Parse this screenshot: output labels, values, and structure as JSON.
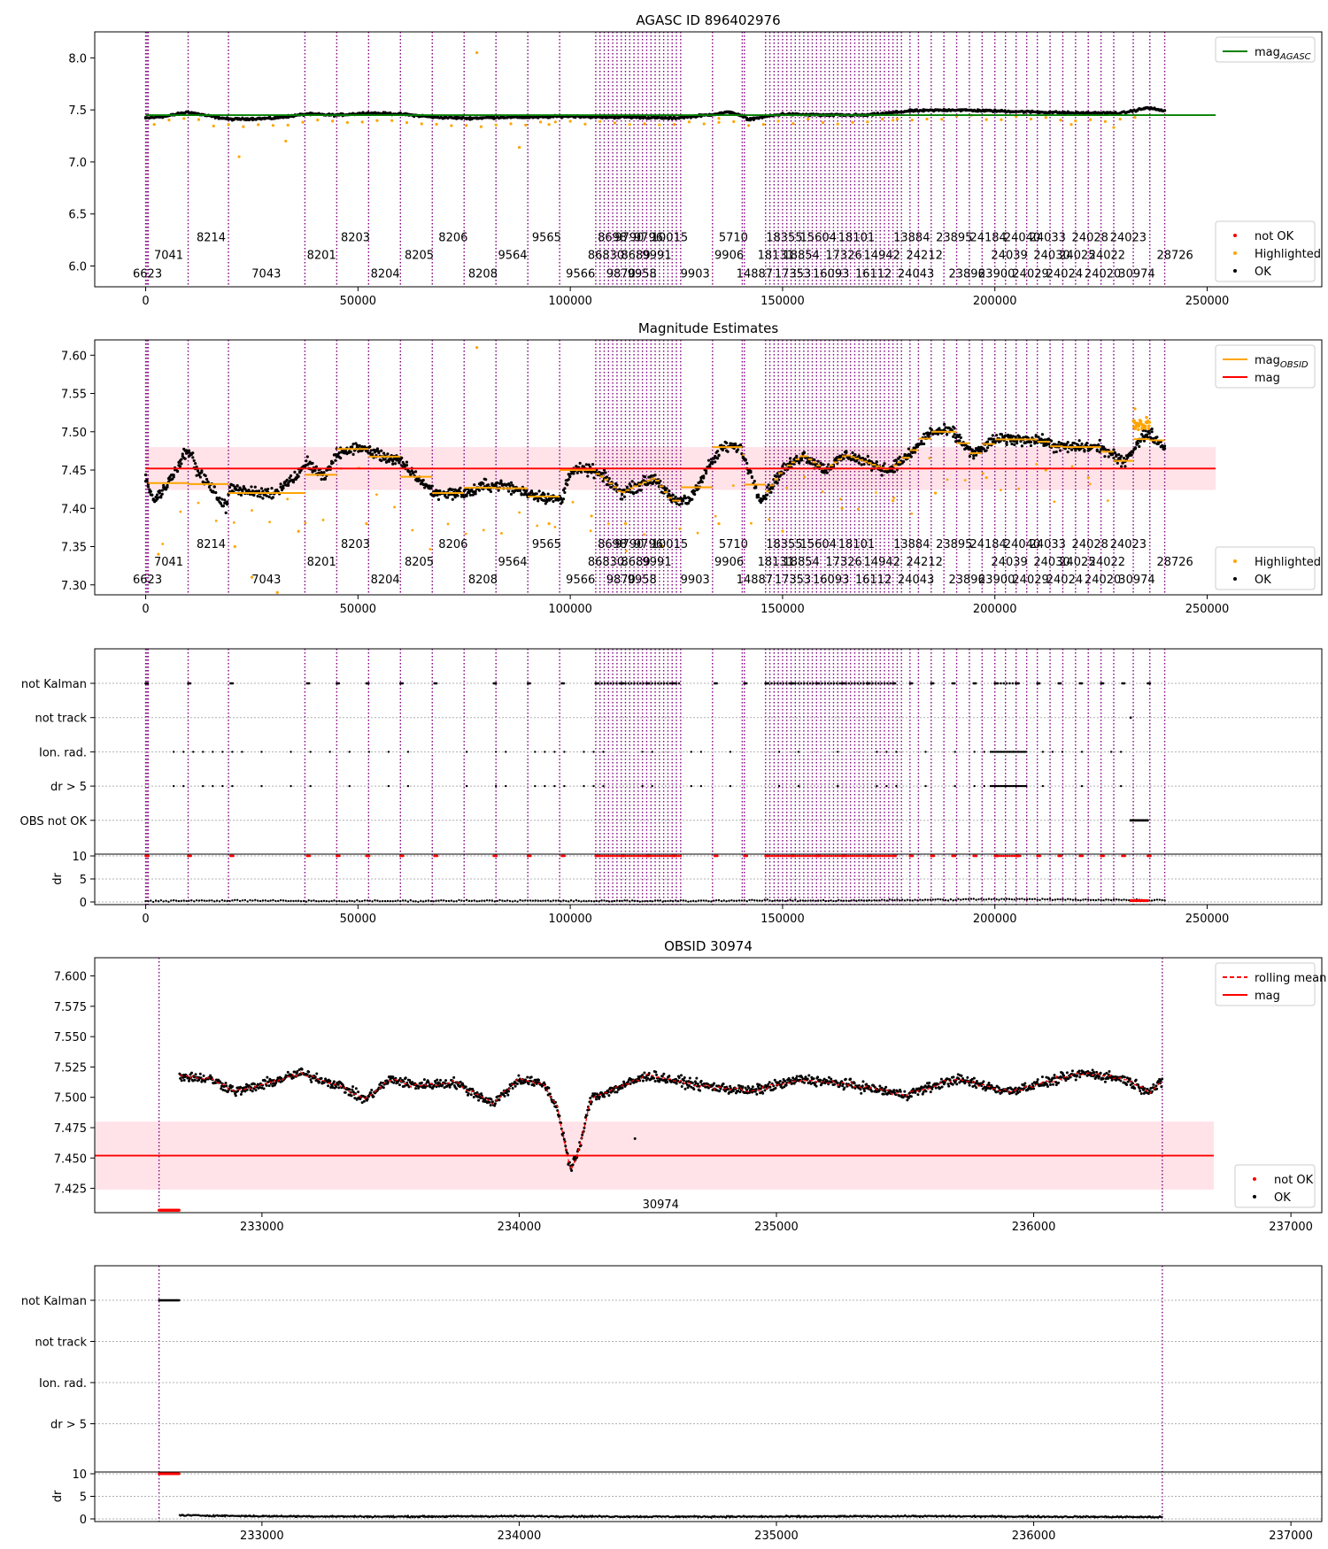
{
  "chart_data": [
    {
      "type": "scatter",
      "title": "AGASC ID 896402976",
      "xlabel": "",
      "ylabel": "",
      "xlim": [
        -12000,
        277000
      ],
      "ylim": [
        5.8,
        8.25
      ],
      "xticks": [
        0,
        50000,
        100000,
        150000,
        200000,
        250000
      ],
      "yticks": [
        6.0,
        6.5,
        7.0,
        7.5,
        8.0
      ],
      "ytick_labels": [
        "6.0",
        "6.5",
        "7.0",
        "7.5",
        "8.0"
      ],
      "xtick_labels": [
        "0",
        "50000",
        "100000",
        "150000",
        "200000",
        "250000"
      ],
      "legend_position": "top-right",
      "legend_lines": [
        {
          "name": "mag_AGASC",
          "color": "#008000"
        }
      ],
      "legend_points": [
        {
          "name": "not OK",
          "color": "#ff0000"
        },
        {
          "name": "Highlighted",
          "color": "#ffa500"
        },
        {
          "name": "OK",
          "color": "#000000"
        }
      ],
      "mag_agasc": 7.45,
      "series": [
        {
          "name": "OK",
          "color": "#000000",
          "x": [
            0,
            5000,
            10000,
            15000,
            20000,
            30000,
            38000,
            45000,
            52000,
            60000,
            68000,
            76000,
            84000,
            92000,
            100000,
            108000,
            116000,
            124000,
            132000,
            138000,
            142000,
            150000,
            160000,
            170000,
            180000,
            190000,
            200000,
            210000,
            220000,
            230000,
            236000,
            240000
          ],
          "y": [
            7.42,
            7.44,
            7.48,
            7.44,
            7.41,
            7.42,
            7.46,
            7.45,
            7.47,
            7.46,
            7.43,
            7.42,
            7.43,
            7.43,
            7.44,
            7.43,
            7.43,
            7.42,
            7.45,
            7.48,
            7.41,
            7.46,
            7.45,
            7.45,
            7.49,
            7.5,
            7.49,
            7.48,
            7.47,
            7.47,
            7.52,
            7.49
          ]
        },
        {
          "name": "Highlighted",
          "color": "#ffa500",
          "x": [
            22000,
            33000,
            78000,
            88000,
            95000,
            135000,
            176000,
            218000,
            228000
          ],
          "y": [
            7.05,
            7.2,
            8.05,
            7.14,
            7.36,
            7.38,
            7.4,
            7.36,
            7.33
          ]
        }
      ]
    },
    {
      "type": "scatter",
      "title": "Magnitude Estimates",
      "xlabel": "",
      "ylabel": "",
      "xlim": [
        -12000,
        277000
      ],
      "ylim": [
        7.287,
        7.62
      ],
      "xticks": [
        0,
        50000,
        100000,
        150000,
        200000,
        250000
      ],
      "yticks": [
        7.3,
        7.35,
        7.4,
        7.45,
        7.5,
        7.55,
        7.6
      ],
      "ytick_labels": [
        "7.30",
        "7.35",
        "7.40",
        "7.45",
        "7.50",
        "7.55",
        "7.60"
      ],
      "xtick_labels": [
        "0",
        "50000",
        "100000",
        "150000",
        "200000",
        "250000"
      ],
      "legend_position": "top-right",
      "legend_lines": [
        {
          "name": "mag_OBSID",
          "color": "#ffa500"
        },
        {
          "name": "mag",
          "color": "#ff0000"
        }
      ],
      "legend_points": [
        {
          "name": "Highlighted",
          "color": "#ffa500"
        },
        {
          "name": "OK",
          "color": "#000000"
        }
      ],
      "mag": 7.452,
      "mag_band": [
        7.424,
        7.48
      ],
      "series": [
        {
          "name": "OK",
          "color": "#000000",
          "x": [
            0,
            2000,
            5000,
            10000,
            12000,
            15000,
            19000,
            20000,
            25000,
            30000,
            35000,
            38000,
            42000,
            45000,
            50000,
            55000,
            60000,
            64000,
            68000,
            72000,
            76000,
            80000,
            84000,
            90000,
            98000,
            100000,
            105000,
            108000,
            112000,
            116000,
            120000,
            124000,
            128000,
            132000,
            136000,
            140000,
            145000,
            150000,
            155000,
            160000,
            165000,
            170000,
            175000,
            180000,
            185000,
            190000,
            195000,
            200000,
            205000,
            210000,
            215000,
            220000,
            225000,
            230000,
            236000,
            240000
          ],
          "y": [
            7.44,
            7.41,
            7.43,
            7.48,
            7.45,
            7.43,
            7.4,
            7.43,
            7.42,
            7.42,
            7.44,
            7.46,
            7.44,
            7.47,
            7.48,
            7.47,
            7.46,
            7.44,
            7.42,
            7.42,
            7.42,
            7.43,
            7.43,
            7.42,
            7.41,
            7.45,
            7.45,
            7.44,
            7.42,
            7.43,
            7.44,
            7.41,
            7.41,
            7.45,
            7.48,
            7.48,
            7.41,
            7.45,
            7.47,
            7.45,
            7.47,
            7.46,
            7.45,
            7.47,
            7.5,
            7.5,
            7.47,
            7.49,
            7.49,
            7.49,
            7.48,
            7.48,
            7.48,
            7.46,
            7.5,
            7.48
          ]
        },
        {
          "name": "Highlighted",
          "color": "#ffa500",
          "x": [
            3000,
            21000,
            25000,
            31000,
            36000,
            52000,
            78000,
            95000,
            105000,
            113000,
            135000,
            150000,
            164000,
            176000,
            186000,
            198000,
            212000,
            222000,
            233000
          ],
          "y": [
            7.34,
            7.35,
            7.31,
            7.29,
            7.37,
            7.38,
            7.61,
            7.38,
            7.39,
            7.38,
            7.38,
            7.37,
            7.4,
            7.41,
            7.42,
            7.44,
            7.45,
            7.44,
            7.53
          ]
        }
      ]
    },
    {
      "type": "scatter",
      "title": "",
      "xlabel": "",
      "ylabel": "dr",
      "xlim": [
        -12000,
        277000
      ],
      "xticks": [
        0,
        50000,
        100000,
        150000,
        200000,
        250000
      ],
      "xtick_labels": [
        "0",
        "50000",
        "100000",
        "150000",
        "200000",
        "250000"
      ],
      "flag_rows": [
        "not Kalman",
        "not track",
        "Ion. rad.",
        "dr > 5",
        "OBS not OK"
      ],
      "dr_ylim": [
        0,
        10
      ],
      "dr_yticks": [
        0,
        5,
        10
      ],
      "dr_ytick_labels": [
        "0",
        "5",
        "10"
      ],
      "series": [
        {
          "name": "not Kalman",
          "color": "#000000",
          "x": [
            0,
            10000,
            20000,
            38000,
            45000,
            52000,
            60000,
            68000,
            82000,
            90000,
            98000,
            106000,
            112000,
            118000,
            124000,
            134000,
            141000,
            146000,
            152000,
            158000,
            164000,
            170000,
            176000,
            180000,
            185000,
            190000,
            195000,
            200000,
            205000,
            210000,
            215000,
            220000,
            225000,
            230000,
            236000
          ]
        },
        {
          "name": "OBS not OK",
          "color": "#000000",
          "x": [
            232000,
            232500,
            233000,
            233500,
            234000,
            234500,
            235000,
            235500,
            236000
          ]
        },
        {
          "name": "dr",
          "color": "#000000",
          "x": [
            0,
            20000,
            40000,
            60000,
            80000,
            100000,
            120000,
            140000,
            160000,
            180000,
            200000,
            220000,
            240000
          ],
          "y": [
            0.2,
            0.3,
            0.2,
            0.2,
            0.3,
            0.2,
            0.2,
            0.3,
            0.3,
            0.4,
            0.6,
            0.5,
            0.4
          ]
        }
      ]
    },
    {
      "type": "line",
      "title": "OBSID 30974",
      "xlabel": "",
      "ylabel": "",
      "xlim": [
        232350,
        237120
      ],
      "ylim": [
        7.405,
        7.615
      ],
      "xticks": [
        233000,
        234000,
        235000,
        236000,
        237000
      ],
      "xtick_labels": [
        "233000",
        "234000",
        "235000",
        "236000",
        "237000"
      ],
      "yticks": [
        7.425,
        7.45,
        7.475,
        7.5,
        7.525,
        7.55,
        7.575,
        7.6
      ],
      "ytick_labels": [
        "7.425",
        "7.450",
        "7.475",
        "7.500",
        "7.525",
        "7.550",
        "7.575",
        "7.600"
      ],
      "legend_position": "top-right",
      "legend_lines": [
        {
          "name": "rolling mean",
          "color": "#ff0000",
          "style": "dashed"
        },
        {
          "name": "mag",
          "color": "#ff0000"
        }
      ],
      "legend_points": [
        {
          "name": "not OK",
          "color": "#ff0000"
        },
        {
          "name": "OK",
          "color": "#000000"
        }
      ],
      "mag": 7.452,
      "mag_band": [
        7.424,
        7.48
      ],
      "obsid_label": "30974",
      "series": [
        {
          "name": "rolling mean",
          "color": "#ff0000",
          "x": [
            232680,
            232800,
            232900,
            233000,
            233150,
            233300,
            233400,
            233500,
            233600,
            233750,
            233900,
            234000,
            234100,
            234150,
            234200,
            234230,
            234280,
            234350,
            234500,
            234700,
            234900,
            235100,
            235300,
            235500,
            235700,
            235900,
            236100,
            236200,
            236350,
            236450,
            236500
          ],
          "y": [
            7.518,
            7.515,
            7.505,
            7.51,
            7.52,
            7.51,
            7.498,
            7.515,
            7.51,
            7.512,
            7.495,
            7.515,
            7.51,
            7.49,
            7.44,
            7.455,
            7.5,
            7.505,
            7.518,
            7.51,
            7.505,
            7.515,
            7.51,
            7.502,
            7.515,
            7.505,
            7.515,
            7.52,
            7.515,
            7.505,
            7.512
          ]
        }
      ]
    },
    {
      "type": "scatter",
      "title": "",
      "xlabel": "",
      "ylabel": "dr",
      "xlim": [
        232350,
        237120
      ],
      "xticks": [
        233000,
        234000,
        235000,
        236000,
        237000
      ],
      "xtick_labels": [
        "233000",
        "234000",
        "235000",
        "236000",
        "237000"
      ],
      "flag_rows": [
        "not Kalman",
        "not track",
        "Ion. rad.",
        "dr > 5"
      ],
      "dr_ylim": [
        0,
        10
      ],
      "dr_yticks": [
        0,
        5,
        10
      ],
      "dr_ytick_labels": [
        "0",
        "5",
        "10"
      ],
      "series": [
        {
          "name": "not Kalman",
          "color": "#000000",
          "x": [
            232600,
            232620,
            232640,
            232660,
            232680
          ]
        },
        {
          "name": "dr",
          "color": "#000000",
          "x": [
            232680,
            233000,
            233500,
            234000,
            234500,
            235000,
            235500,
            236000,
            236500
          ],
          "y": [
            0.8,
            0.6,
            0.5,
            0.6,
            0.5,
            0.5,
            0.6,
            0.5,
            0.4
          ]
        }
      ]
    }
  ],
  "obsid_labels": [
    {
      "text": "6623",
      "x": 0,
      "row": 3
    },
    {
      "text": "7041",
      "x": 5000,
      "row": 2
    },
    {
      "text": "8214",
      "x": 15000,
      "row": 1
    },
    {
      "text": "7043",
      "x": 28000,
      "row": 3
    },
    {
      "text": "8201",
      "x": 41000,
      "row": 2
    },
    {
      "text": "8203",
      "x": 49000,
      "row": 1
    },
    {
      "text": "8204",
      "x": 56000,
      "row": 3
    },
    {
      "text": "8205",
      "x": 64000,
      "row": 2
    },
    {
      "text": "8206",
      "x": 72000,
      "row": 1
    },
    {
      "text": "8208",
      "x": 79000,
      "row": 3
    },
    {
      "text": "9564",
      "x": 86000,
      "row": 2
    },
    {
      "text": "9565",
      "x": 94000,
      "row": 1
    },
    {
      "text": "9566",
      "x": 102000,
      "row": 3
    },
    {
      "text": "86830",
      "x": 108000,
      "row": 2
    },
    {
      "text": "8698",
      "x": 109500,
      "row": 1
    },
    {
      "text": "9870",
      "x": 111500,
      "row": 3
    },
    {
      "text": "9790",
      "x": 113500,
      "row": 1
    },
    {
      "text": "8689",
      "x": 115000,
      "row": 2
    },
    {
      "text": "9958",
      "x": 116500,
      "row": 3
    },
    {
      "text": "9796",
      "x": 118000,
      "row": 1
    },
    {
      "text": "9991",
      "x": 120000,
      "row": 2
    },
    {
      "text": "9903",
      "x": 129000,
      "row": 3
    },
    {
      "text": "10015",
      "x": 123000,
      "row": 1
    },
    {
      "text": "9906",
      "x": 137000,
      "row": 2
    },
    {
      "text": "5710",
      "x": 138000,
      "row": 1
    },
    {
      "text": "14887",
      "x": 143000,
      "row": 3
    },
    {
      "text": "18131",
      "x": 148000,
      "row": 2
    },
    {
      "text": "18355",
      "x": 150000,
      "row": 1
    },
    {
      "text": "18854",
      "x": 154000,
      "row": 2
    },
    {
      "text": "17353",
      "x": 152000,
      "row": 3
    },
    {
      "text": "15604",
      "x": 158000,
      "row": 1
    },
    {
      "text": "16093",
      "x": 161000,
      "row": 3
    },
    {
      "text": "17326",
      "x": 164000,
      "row": 2
    },
    {
      "text": "18101",
      "x": 167000,
      "row": 1
    },
    {
      "text": "16112",
      "x": 171000,
      "row": 3
    },
    {
      "text": "14942",
      "x": 173000,
      "row": 2
    },
    {
      "text": "13884",
      "x": 180000,
      "row": 1
    },
    {
      "text": "24043",
      "x": 181000,
      "row": 3
    },
    {
      "text": "24212",
      "x": 183000,
      "row": 2
    },
    {
      "text": "23895",
      "x": 190000,
      "row": 1
    },
    {
      "text": "23896",
      "x": 193000,
      "row": 3
    },
    {
      "text": "24184",
      "x": 198000,
      "row": 1
    },
    {
      "text": "23900",
      "x": 200000,
      "row": 3
    },
    {
      "text": "24040",
      "x": 206000,
      "row": 1
    },
    {
      "text": "24039",
      "x": 203000,
      "row": 2
    },
    {
      "text": "24029",
      "x": 208000,
      "row": 3
    },
    {
      "text": "24033",
      "x": 212000,
      "row": 1
    },
    {
      "text": "24030",
      "x": 213000,
      "row": 2
    },
    {
      "text": "24024",
      "x": 216000,
      "row": 3
    },
    {
      "text": "24028",
      "x": 222000,
      "row": 1
    },
    {
      "text": "24025",
      "x": 219000,
      "row": 2
    },
    {
      "text": "24020",
      "x": 225000,
      "row": 3
    },
    {
      "text": "24022",
      "x": 226000,
      "row": 2
    },
    {
      "text": "24023",
      "x": 231000,
      "row": 1
    },
    {
      "text": "30974",
      "x": 233000,
      "row": 3
    },
    {
      "text": "28726",
      "x": 242000,
      "row": 2
    }
  ]
}
